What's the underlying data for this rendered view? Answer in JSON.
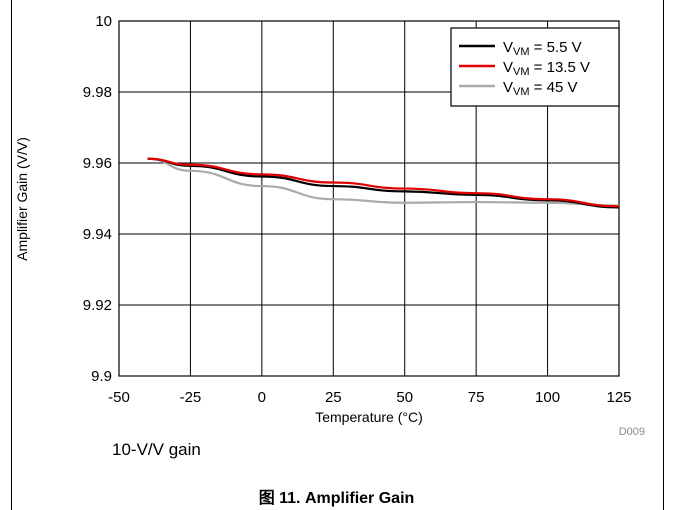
{
  "chart_data": {
    "type": "line",
    "xlabel": "Temperature (°C)",
    "ylabel": "Amplifier Gain (V/V)",
    "xlim": [
      -50,
      125
    ],
    "ylim": [
      9.9,
      10
    ],
    "xticks": [
      "-50",
      "-25",
      "0",
      "25",
      "50",
      "75",
      "100",
      "125"
    ],
    "yticks": [
      "9.9",
      "9.92",
      "9.94",
      "9.96",
      "9.98",
      "10"
    ],
    "grid": true,
    "legend_position": "top-right",
    "series": [
      {
        "name_main": "V",
        "name_sub": "VM",
        "name_rest": " = 5.5 V",
        "color": "#000000",
        "x": [
          -40,
          -25,
          0,
          25,
          50,
          75,
          100,
          125
        ],
        "values": [
          9.9612,
          9.9592,
          9.9562,
          9.9535,
          9.952,
          9.951,
          9.9495,
          9.9475
        ]
      },
      {
        "name_main": "V",
        "name_sub": "VM",
        "name_rest": " = 13.5 V",
        "color": "#e00000",
        "x": [
          -40,
          -25,
          0,
          25,
          50,
          75,
          100,
          125
        ],
        "values": [
          9.9612,
          9.9595,
          9.9568,
          9.9545,
          9.9528,
          9.9515,
          9.9498,
          9.9478
        ]
      },
      {
        "name_main": "V",
        "name_sub": "VM",
        "name_rest": " = 45 V",
        "color": "#aaaaaa",
        "x": [
          -40,
          -25,
          0,
          25,
          50,
          75,
          100,
          125
        ],
        "values": [
          9.9612,
          9.9578,
          9.9535,
          9.9498,
          9.9488,
          9.949,
          9.9488,
          9.948
        ]
      }
    ],
    "watermark": "D009"
  },
  "note": "10-V/V gain",
  "caption": "图 11. Amplifier Gain"
}
